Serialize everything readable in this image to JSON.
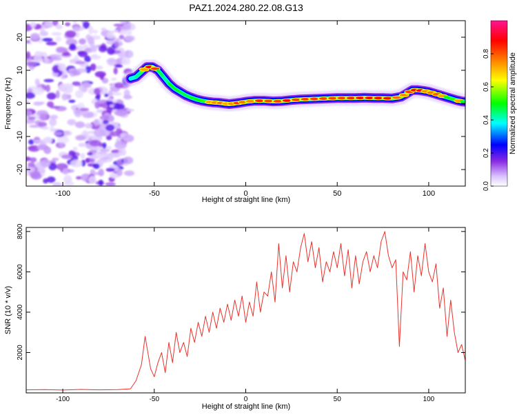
{
  "title": "PAZ1.2024.280.22.08.G13",
  "chart_data": [
    {
      "type": "heatmap",
      "title": "PAZ1.2024.280.22.08.G13",
      "xlabel": "Height of straight line (km)",
      "ylabel": "Frequency (Hz)",
      "xlim": [
        -120,
        120
      ],
      "ylim": [
        -25,
        25
      ],
      "xticks": [
        -100,
        -50,
        0,
        50,
        100
      ],
      "yticks": [
        20,
        10,
        0,
        -10,
        -20
      ],
      "colorbar": {
        "label": "Normalized spectral amplitude",
        "range": [
          0,
          1
        ],
        "ticks": [
          "0.0",
          "0.2",
          "0.4",
          "0.6",
          "0.8"
        ],
        "colors": [
          "#ffffff",
          "#d9c2ff",
          "#8a2be2",
          "#0000ff",
          "#00ffff",
          "#00ff00",
          "#ffff00",
          "#ff8000",
          "#ff0000",
          "#ff1493"
        ]
      },
      "noise_region_x": [
        -120,
        -63
      ],
      "ridge": {
        "x": [
          -63,
          -60,
          -57,
          -54,
          -51,
          -48,
          -45,
          -42,
          -39,
          -36,
          -33,
          -30,
          -27,
          -24,
          -21,
          -18,
          -15,
          -12,
          -9,
          -6,
          -3,
          0,
          5,
          10,
          15,
          20,
          25,
          30,
          35,
          40,
          45,
          50,
          55,
          60,
          65,
          70,
          75,
          80,
          85,
          88,
          91,
          94,
          97,
          100,
          103,
          106,
          109,
          112,
          115,
          118,
          120
        ],
        "freq_hz": [
          7.5,
          8.0,
          9.5,
          11.0,
          11.0,
          10.0,
          8.0,
          6.0,
          4.5,
          3.5,
          2.5,
          1.8,
          1.2,
          0.8,
          0.5,
          0.3,
          0.2,
          0.0,
          -0.2,
          0.0,
          0.2,
          0.5,
          0.8,
          0.8,
          0.6,
          0.7,
          1.0,
          1.2,
          1.3,
          1.4,
          1.5,
          1.6,
          1.6,
          1.6,
          1.7,
          1.6,
          1.6,
          1.5,
          2.0,
          3.0,
          4.0,
          4.0,
          3.8,
          3.5,
          3.0,
          2.5,
          2.0,
          1.5,
          1.0,
          0.6,
          0.5
        ],
        "amplitude": [
          0.5,
          0.55,
          0.6,
          0.85,
          0.95,
          0.7,
          0.55,
          0.6,
          0.7,
          0.6,
          0.65,
          0.6,
          0.7,
          0.65,
          0.75,
          0.7,
          0.8,
          0.75,
          0.7,
          0.8,
          0.85,
          0.7,
          0.8,
          0.9,
          0.75,
          0.9,
          0.85,
          0.8,
          0.85,
          0.8,
          0.85,
          0.8,
          0.85,
          0.85,
          0.9,
          0.85,
          0.9,
          0.85,
          0.7,
          0.8,
          0.85,
          0.95,
          0.8,
          0.7,
          0.85,
          0.75,
          0.7,
          0.65,
          0.75,
          0.7,
          0.6
        ]
      }
    },
    {
      "type": "line",
      "xlabel": "Height of straight line (km)",
      "ylabel": "SNR (10 * v/v)",
      "xlim": [
        -120,
        120
      ],
      "ylim": [
        0,
        8200
      ],
      "xticks": [
        -100,
        -50,
        0,
        50,
        100
      ],
      "yticks": [
        2000,
        4000,
        6000,
        8000
      ],
      "color": "#e8312a",
      "x": [
        -120,
        -110,
        -100,
        -90,
        -80,
        -70,
        -63,
        -60,
        -57,
        -55,
        -52,
        -50,
        -48,
        -46,
        -44,
        -42,
        -40,
        -38,
        -36,
        -34,
        -32,
        -30,
        -28,
        -26,
        -24,
        -22,
        -20,
        -18,
        -16,
        -14,
        -12,
        -10,
        -8,
        -6,
        -4,
        -2,
        0,
        2,
        4,
        6,
        8,
        10,
        12,
        14,
        16,
        18,
        20,
        22,
        24,
        26,
        28,
        30,
        32,
        34,
        36,
        38,
        40,
        42,
        44,
        46,
        48,
        50,
        52,
        54,
        56,
        58,
        60,
        62,
        64,
        66,
        68,
        70,
        72,
        74,
        76,
        78,
        80,
        82,
        84,
        86,
        88,
        90,
        92,
        94,
        96,
        98,
        100,
        102,
        104,
        106,
        108,
        110,
        112,
        114,
        116,
        118,
        120
      ],
      "values": [
        150,
        160,
        140,
        170,
        150,
        160,
        200,
        600,
        1400,
        2800,
        1200,
        800,
        1500,
        2000,
        1000,
        2500,
        1500,
        3000,
        2000,
        2500,
        1800,
        3200,
        2500,
        3500,
        2800,
        3800,
        3000,
        4000,
        3200,
        4200,
        3500,
        4400,
        3600,
        4600,
        3800,
        4800,
        3500,
        4500,
        3800,
        5500,
        4000,
        5000,
        4800,
        6000,
        4500,
        7400,
        5200,
        6800,
        5000,
        6500,
        6000,
        7200,
        7900,
        6500,
        7500,
        6200,
        7200,
        5500,
        6500,
        6000,
        7000,
        6200,
        7400,
        5800,
        7100,
        5200,
        6800,
        5400,
        6500,
        7000,
        6000,
        6800,
        6200,
        7500,
        8000,
        6800,
        6200,
        6600,
        2300,
        6000,
        5600,
        7000,
        5000,
        6800,
        5800,
        7400,
        6000,
        5500,
        6400,
        4200,
        5200,
        2800,
        4600,
        3000,
        2000,
        2400,
        1600
      ]
    }
  ]
}
